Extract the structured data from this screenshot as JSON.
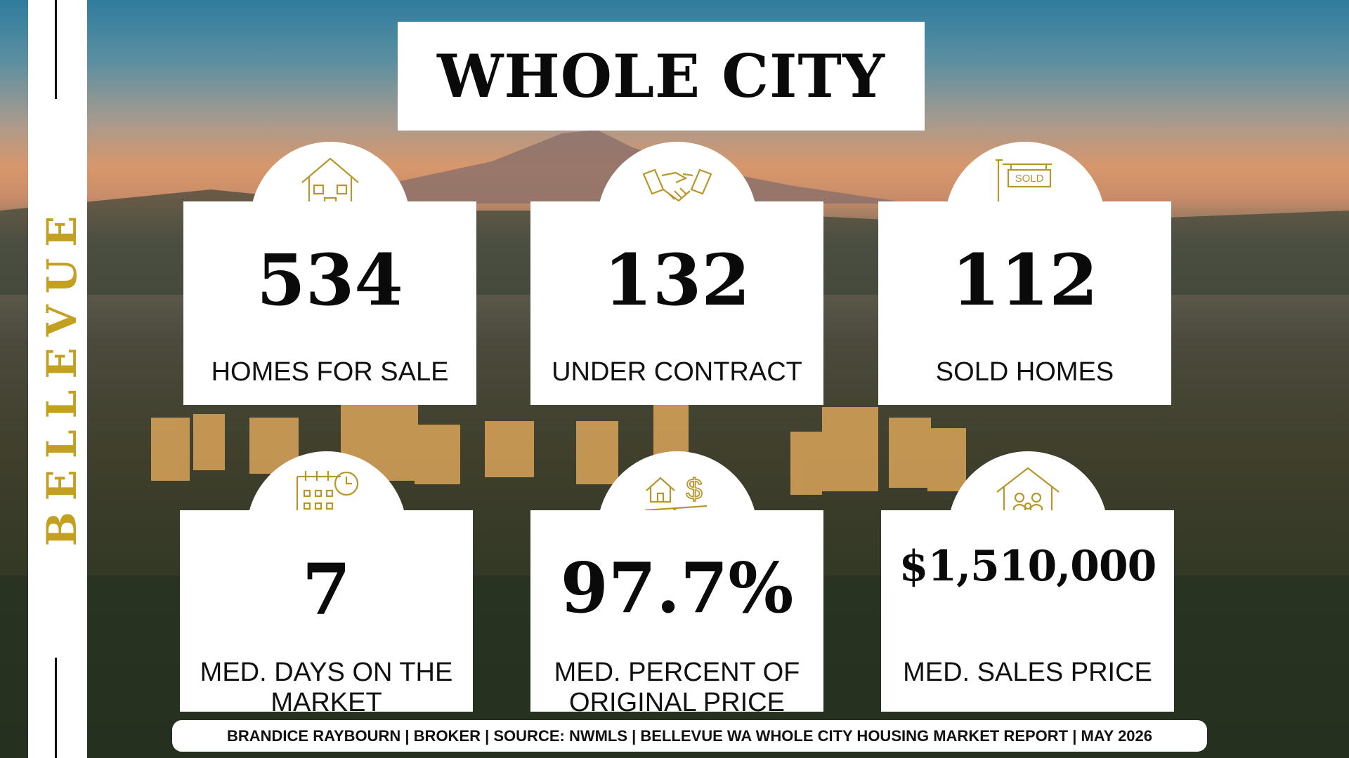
{
  "side_label": "BELLEVUE",
  "title": "WHOLE CITY",
  "stats": [
    {
      "value": "534",
      "label": "HOMES FOR SALE"
    },
    {
      "value": "132",
      "label": "UNDER CONTRACT"
    },
    {
      "value": "112",
      "label": "SOLD HOMES"
    },
    {
      "value": "7",
      "label": "MED. DAYS ON THE MARKET"
    },
    {
      "value": "97.7%",
      "label": "MED. PERCENT OF ORIGINAL PRICE"
    },
    {
      "value": "$1,510,000",
      "label": "MED. SALES PRICE"
    }
  ],
  "footer": "BRANDICE RAYBOURN | BROKER | SOURCE: NWMLS | BELLEVUE WA WHOLE CITY HOUSING MARKET REPORT | MAY 2026"
}
